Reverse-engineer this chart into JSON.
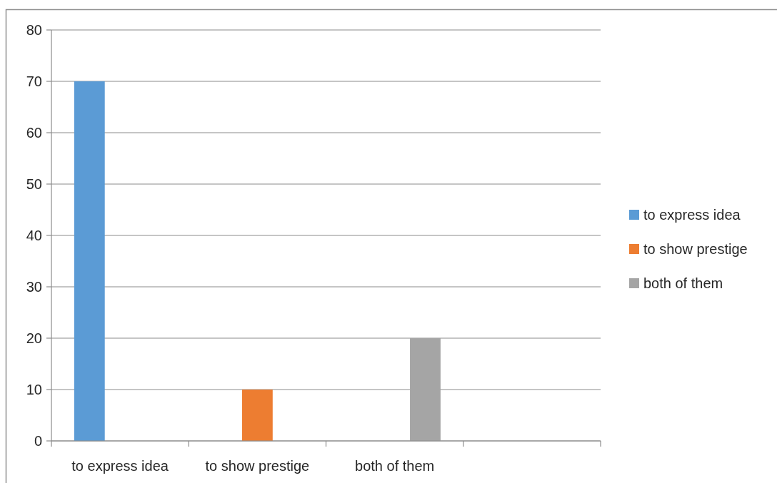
{
  "chart_data": {
    "type": "bar",
    "categories": [
      "to express idea",
      "to show prestige",
      "both of them",
      null
    ],
    "series": [
      {
        "name": "to express idea",
        "color": "#5b9bd5",
        "values": [
          70,
          null,
          null,
          null
        ]
      },
      {
        "name": "to show prestige",
        "color": "#ed7d31",
        "values": [
          null,
          10,
          null,
          null
        ]
      },
      {
        "name": "both of them",
        "color": "#a5a5a5",
        "values": [
          null,
          null,
          20,
          null
        ]
      }
    ],
    "ylim": [
      0,
      80
    ],
    "yticks": [
      0,
      10,
      20,
      30,
      40,
      50,
      60,
      70,
      80
    ],
    "grid": "y",
    "legend": "right"
  }
}
